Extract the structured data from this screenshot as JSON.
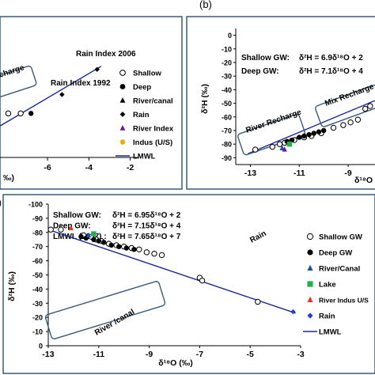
{
  "panel_a": {
    "chart_data": {
      "type": "scatter",
      "title": "",
      "xlabel": "‰)",
      "xticks": [
        -6,
        -4,
        -2
      ],
      "xlim": [
        -8.3,
        -1.6
      ],
      "ylim": [
        -80,
        0
      ],
      "annotations": {
        "rain_index_2006": "Rain Index 2006",
        "rain_index_1992": "Rain Index  1992",
        "recharge": "charge"
      },
      "legend": [
        {
          "label": "Shallow",
          "marker": "open-circle"
        },
        {
          "label": "Deep",
          "marker": "filled-circle"
        },
        {
          "label": "River/canal",
          "marker": "triangle"
        },
        {
          "label": "Rain",
          "marker": "diamond"
        },
        {
          "label": "River Index",
          "marker": "purple-triangle",
          "color": "#6a1b9a"
        },
        {
          "label": "Indus (U/S)",
          "marker": "asterisk",
          "color": "#e6a800"
        },
        {
          "label": "LMWL",
          "marker": "line",
          "color": "#1a2a9c"
        }
      ],
      "series": [
        {
          "name": "Shallow",
          "x": [
            -7.9,
            -7.3
          ],
          "y": [
            -52,
            -52
          ]
        },
        {
          "name": "Deep",
          "x": [
            -6.8
          ],
          "y": [
            -52
          ]
        },
        {
          "name": "Rain",
          "x": [
            -5.3,
            -3.6
          ],
          "y": [
            -40,
            -24
          ]
        }
      ],
      "lmwl": {
        "x": [
          -8.3,
          -3.4
        ],
        "y": [
          -60,
          -22
        ]
      }
    }
  },
  "panel_b": {
    "label": "(b)",
    "chart_data": {
      "type": "scatter",
      "title": "",
      "ylabel": "δ²H (‰)",
      "xlabel": "δ¹⁸O",
      "equations": [
        "Shallow GW:",
        "δ²H = 6.9δ¹⁸O + 2",
        "Deep GW:",
        "δ²H = 7.1δ¹⁸O + 4"
      ],
      "yticks": [
        0,
        -10,
        -20,
        -30,
        -40,
        -50,
        -60,
        -70,
        -80,
        -90
      ],
      "xticks": [
        -13,
        -11,
        -9
      ],
      "xlim": [
        -13.6,
        -7.9
      ],
      "ylim": [
        -95,
        5
      ],
      "annotations": {
        "river_recharge": "River Recharge",
        "mix_recharge": "Mix Recharge"
      },
      "series": [
        {
          "name": "Shallow",
          "x": [
            -12.8,
            -12.1,
            -11.8,
            -11.6,
            -11.2,
            -10.8,
            -10.5,
            -10.1,
            -9.6,
            -9.2,
            -8.9,
            -8.6,
            -8.3,
            -8.1
          ],
          "y": [
            -84,
            -82,
            -80,
            -79,
            -77,
            -75,
            -74,
            -72,
            -68,
            -66,
            -64,
            -62,
            -54,
            -52
          ]
        },
        {
          "name": "Deep",
          "x": [
            -11.5,
            -11.3,
            -11.0,
            -10.8,
            -10.6,
            -10.4,
            -10.2,
            -10.0
          ],
          "y": [
            -78,
            -77,
            -75,
            -74,
            -73,
            -72,
            -71,
            -70
          ]
        },
        {
          "name": "River/canal",
          "x": [
            -11.7
          ],
          "y": [
            -83
          ]
        },
        {
          "name": "River Index",
          "x": [
            -11.6
          ],
          "y": [
            -84
          ]
        },
        {
          "name": "Lake",
          "x": [
            -11.4
          ],
          "y": [
            -80
          ]
        }
      ],
      "lmwl": {
        "x": [
          -13.1,
          -7.9
        ],
        "y": [
          -87,
          -48
        ]
      }
    }
  },
  "panel_c": {
    "chart_data": {
      "type": "scatter",
      "title": "",
      "ylabel": "δ²H (‰)",
      "xlabel": "δ¹⁸O (‰)",
      "equations": [
        {
          "name": "Shallow GW:",
          "eq": "δ²H = 6.95δ¹⁸O + 2"
        },
        {
          "name": "Deep GW:",
          "eq": "δ²H = 7.15δ¹⁸O + 4"
        },
        {
          "name": "LMWL (2007) :",
          "eq": "δ²H = 7.65δ¹⁸O + 7"
        }
      ],
      "yticks": [
        0,
        -10,
        -20,
        -30,
        -40,
        -50,
        -60,
        -70,
        -80,
        -90,
        -100
      ],
      "ytick_labels": [
        "0",
        "-10",
        "-20",
        "-30",
        "-40",
        "-50",
        "-60",
        "-70",
        "-80",
        "-90",
        "-100"
      ],
      "xticks": [
        -13,
        -11,
        -9,
        -7,
        -5,
        -3
      ],
      "xlim": [
        -13,
        -3
      ],
      "ylim": [
        -100,
        0
      ],
      "annotations": {
        "river_canal": "River /canal",
        "rain": "Rain",
        "y_prefix": ")"
      },
      "legend": [
        {
          "label": "Shallow GW",
          "marker": "open-circle"
        },
        {
          "label": "Deep GW",
          "marker": "filled-circle"
        },
        {
          "label": "River/Canal",
          "marker": "triangle",
          "color": "#1f4fa8"
        },
        {
          "label": "Lake",
          "marker": "square",
          "color": "#22b04b"
        },
        {
          "label": "River Indus U/S",
          "marker": "triangle",
          "color": "#e03a1e"
        },
        {
          "label": "Rain",
          "marker": "diamond",
          "color": "#1f3fd0"
        },
        {
          "label": "LMWL",
          "marker": "line",
          "color": "#1a2a9c"
        }
      ],
      "series": [
        {
          "name": "Shallow GW",
          "x": [
            -12.9,
            -12.5,
            -11.6,
            -11.3,
            -11.1,
            -10.9,
            -10.6,
            -10.3,
            -10.0,
            -9.7,
            -9.4,
            -9.1,
            -8.8,
            -8.5,
            -7.0,
            -6.9,
            -4.7
          ],
          "y": [
            -82,
            -82,
            -78,
            -77,
            -75,
            -74,
            -72,
            -71,
            -70,
            -69,
            -68,
            -66,
            -65,
            -64,
            -48,
            -46,
            -31
          ]
        },
        {
          "name": "Deep GW",
          "x": [
            -11.7,
            -11.5,
            -11.2,
            -11.0,
            -10.8,
            -10.5,
            -10.2,
            -9.9,
            -9.6
          ],
          "y": [
            -77,
            -76,
            -75,
            -74,
            -73,
            -71,
            -70,
            -69,
            -68
          ]
        },
        {
          "name": "River/Canal",
          "x": [
            -11.4
          ],
          "y": [
            -78
          ]
        },
        {
          "name": "Lake",
          "x": [
            -11.2
          ],
          "y": [
            -79
          ]
        },
        {
          "name": "River Indus U/S",
          "x": [
            -12.1
          ],
          "y": [
            -83
          ]
        },
        {
          "name": "Rain",
          "x": [
            -3.3
          ],
          "y": [
            -24
          ]
        }
      ],
      "lmwl": {
        "x": [
          -13.0,
          -3.2
        ],
        "y": [
          -82,
          -23
        ]
      }
    }
  }
}
